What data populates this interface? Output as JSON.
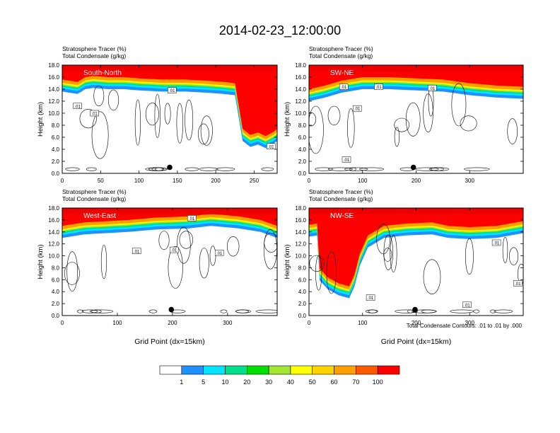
{
  "title": "2014-02-23_12:00:00",
  "footnote": "Total Condensate Contours: .01 to .01 by .000",
  "colorbar": {
    "colors": [
      "#ffffff",
      "#1e90ff",
      "#00e5ff",
      "#00e08a",
      "#00e000",
      "#a0e632",
      "#ffff00",
      "#ffd200",
      "#ffa000",
      "#ff5a00",
      "#ff0000"
    ],
    "labels": [
      "1",
      "5",
      "10",
      "20",
      "30",
      "40",
      "50",
      "60",
      "70",
      "100"
    ]
  },
  "chart_data": [
    {
      "type": "heatmap",
      "panel": "South-North",
      "subtitle_1": "Stratosphere Tracer   (%)",
      "subtitle_2": "Total Condensate   (g/kg)",
      "xlabel": "",
      "ylabel": "Height (km)",
      "xlim": [
        0,
        280
      ],
      "ylim": [
        0,
        18
      ],
      "xticks": [
        "0",
        "50",
        "100",
        "150",
        "200",
        "250"
      ],
      "yticks": [
        "0.0",
        "2.0",
        "4.0",
        "6.0",
        "8.0",
        "10.0",
        "12.0",
        "14.0",
        "16.0",
        "18.0"
      ],
      "tracer_top": [
        [
          0,
          15.2
        ],
        [
          10,
          15.0
        ],
        [
          20,
          14.8
        ],
        [
          30,
          15.6
        ],
        [
          40,
          15.8
        ],
        [
          60,
          15.6
        ],
        [
          80,
          15.6
        ],
        [
          100,
          15.4
        ],
        [
          130,
          15.2
        ],
        [
          160,
          15.2
        ],
        [
          190,
          15.0
        ],
        [
          210,
          14.8
        ],
        [
          225,
          14.6
        ],
        [
          235,
          7.0
        ],
        [
          245,
          6.0
        ],
        [
          255,
          6.4
        ],
        [
          265,
          5.8
        ],
        [
          275,
          6.5
        ],
        [
          280,
          7.0
        ]
      ],
      "contour_labels": [
        {
          "x": 20,
          "y": 11.2,
          "text": ".01"
        },
        {
          "x": 42,
          "y": 10.0,
          "text": ".01"
        },
        {
          "x": 143,
          "y": 13.8,
          "text": ".01"
        },
        {
          "x": 272,
          "y": 4.5,
          "text": ".01"
        }
      ],
      "marker": {
        "x": 140,
        "y": 1.0
      }
    },
    {
      "type": "heatmap",
      "panel": "SW-NE",
      "subtitle_1": "Stratosphere Tracer   (%)",
      "subtitle_2": "Total Condensate   (g/kg)",
      "xlabel": "",
      "ylabel": "Height (km)",
      "xlim": [
        0,
        400
      ],
      "ylim": [
        0,
        18
      ],
      "xticks": [
        "0",
        "100",
        "200",
        "300"
      ],
      "yticks": [
        "0.0",
        "2.0",
        "4.0",
        "6.0",
        "8.0",
        "10.0",
        "12.0",
        "14.0",
        "16.0",
        "18.0"
      ],
      "tracer_top": [
        [
          0,
          13.6
        ],
        [
          30,
          14.2
        ],
        [
          60,
          15.0
        ],
        [
          100,
          15.6
        ],
        [
          150,
          15.6
        ],
        [
          200,
          15.4
        ],
        [
          250,
          15.2
        ],
        [
          300,
          14.6
        ],
        [
          350,
          14.2
        ],
        [
          400,
          14.0
        ]
      ],
      "contour_labels": [
        {
          "x": 65,
          "y": 14.4,
          "text": ".01"
        },
        {
          "x": 130,
          "y": 14.4,
          "text": ".01"
        },
        {
          "x": 230,
          "y": 14.2,
          "text": ".01"
        },
        {
          "x": 90,
          "y": 10.8,
          "text": ".01"
        },
        {
          "x": 70,
          "y": 2.3,
          "text": ".01"
        }
      ],
      "marker": {
        "x": 195,
        "y": 1.0
      }
    },
    {
      "type": "heatmap",
      "panel": "West-East",
      "subtitle_1": "Stratosphere Tracer   (%)",
      "subtitle_2": "Total Condensate   (g/kg)",
      "xlabel": "Grid Point (dx=15km)",
      "ylabel": "Height (km)",
      "xlim": [
        0,
        390
      ],
      "ylim": [
        0,
        18
      ],
      "xticks": [
        "0",
        "100",
        "200",
        "300"
      ],
      "yticks": [
        "0.0",
        "2.0",
        "4.0",
        "6.0",
        "8.0",
        "10.0",
        "12.0",
        "14.0",
        "16.0",
        "18.0"
      ],
      "tracer_top": [
        [
          0,
          14.6
        ],
        [
          40,
          15.2
        ],
        [
          80,
          15.4
        ],
        [
          120,
          15.6
        ],
        [
          170,
          16.0
        ],
        [
          230,
          16.2
        ],
        [
          270,
          16.6
        ],
        [
          320,
          16.2
        ],
        [
          360,
          15.6
        ],
        [
          390,
          14.6
        ]
      ],
      "contour_labels": [
        {
          "x": 135,
          "y": 10.8,
          "text": ".01"
        },
        {
          "x": 203,
          "y": 11.0,
          "text": ".01"
        },
        {
          "x": 235,
          "y": 16.3,
          "text": ".01"
        },
        {
          "x": 285,
          "y": 10.5,
          "text": ".01"
        }
      ],
      "marker": {
        "x": 198,
        "y": 1.0
      }
    },
    {
      "type": "heatmap",
      "panel": "NW-SE",
      "subtitle_1": "Stratosphere Tracer   (%)",
      "subtitle_2": "Total Condensate   (g/kg)",
      "xlabel": "Grid Point (dx=15km)",
      "ylabel": "Height (km)",
      "xlim": [
        0,
        400
      ],
      "ylim": [
        0,
        18
      ],
      "xticks": [
        "0",
        "100",
        "200",
        "300"
      ],
      "yticks": [
        "0.0",
        "2.0",
        "4.0",
        "6.0",
        "8.0",
        "10.0",
        "12.0",
        "14.0",
        "16.0",
        "18.0"
      ],
      "tracer_top": [
        [
          0,
          14.8
        ],
        [
          15,
          15.0
        ],
        [
          20,
          7.5
        ],
        [
          35,
          6.0
        ],
        [
          55,
          5.0
        ],
        [
          75,
          4.5
        ],
        [
          85,
          6.5
        ],
        [
          95,
          10.0
        ],
        [
          110,
          13.0
        ],
        [
          140,
          14.6
        ],
        [
          180,
          15.0
        ],
        [
          230,
          15.2
        ],
        [
          260,
          14.6
        ],
        [
          300,
          14.4
        ],
        [
          350,
          14.6
        ],
        [
          400,
          15.4
        ]
      ],
      "contour_labels": [
        {
          "x": 350,
          "y": 12.2,
          "text": ".01"
        },
        {
          "x": 115,
          "y": 3.0,
          "text": ".01"
        },
        {
          "x": 295,
          "y": 1.8,
          "text": ".01"
        },
        {
          "x": 390,
          "y": 5.4,
          "text": ".01"
        }
      ],
      "marker": {
        "x": 198,
        "y": 1.0
      }
    }
  ]
}
